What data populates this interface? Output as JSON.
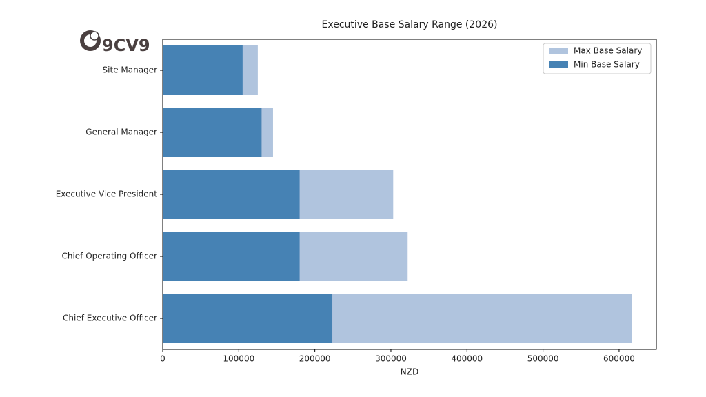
{
  "logo": "9CV9",
  "chart_data": {
    "type": "barh-overlap",
    "title": "Executive Base Salary Range (2026)",
    "x_label": "NZD",
    "categories": [
      "Site Manager",
      "General Manager",
      "Executive Vice President",
      "Chief Operating Officer",
      "Chief Executive Officer"
    ],
    "series": [
      {
        "name": "Max Base Salary",
        "color": "#b0c4de",
        "values": [
          125000,
          145000,
          303000,
          322000,
          617000
        ]
      },
      {
        "name": "Min Base Salary",
        "color": "#4682b4",
        "values": [
          105000,
          130000,
          180000,
          180000,
          223000
        ]
      }
    ],
    "xlim": [
      0,
      649000
    ],
    "xticks": [
      0,
      100000,
      200000,
      300000,
      400000,
      500000,
      600000
    ],
    "legend": "upper-right",
    "grid": false
  }
}
